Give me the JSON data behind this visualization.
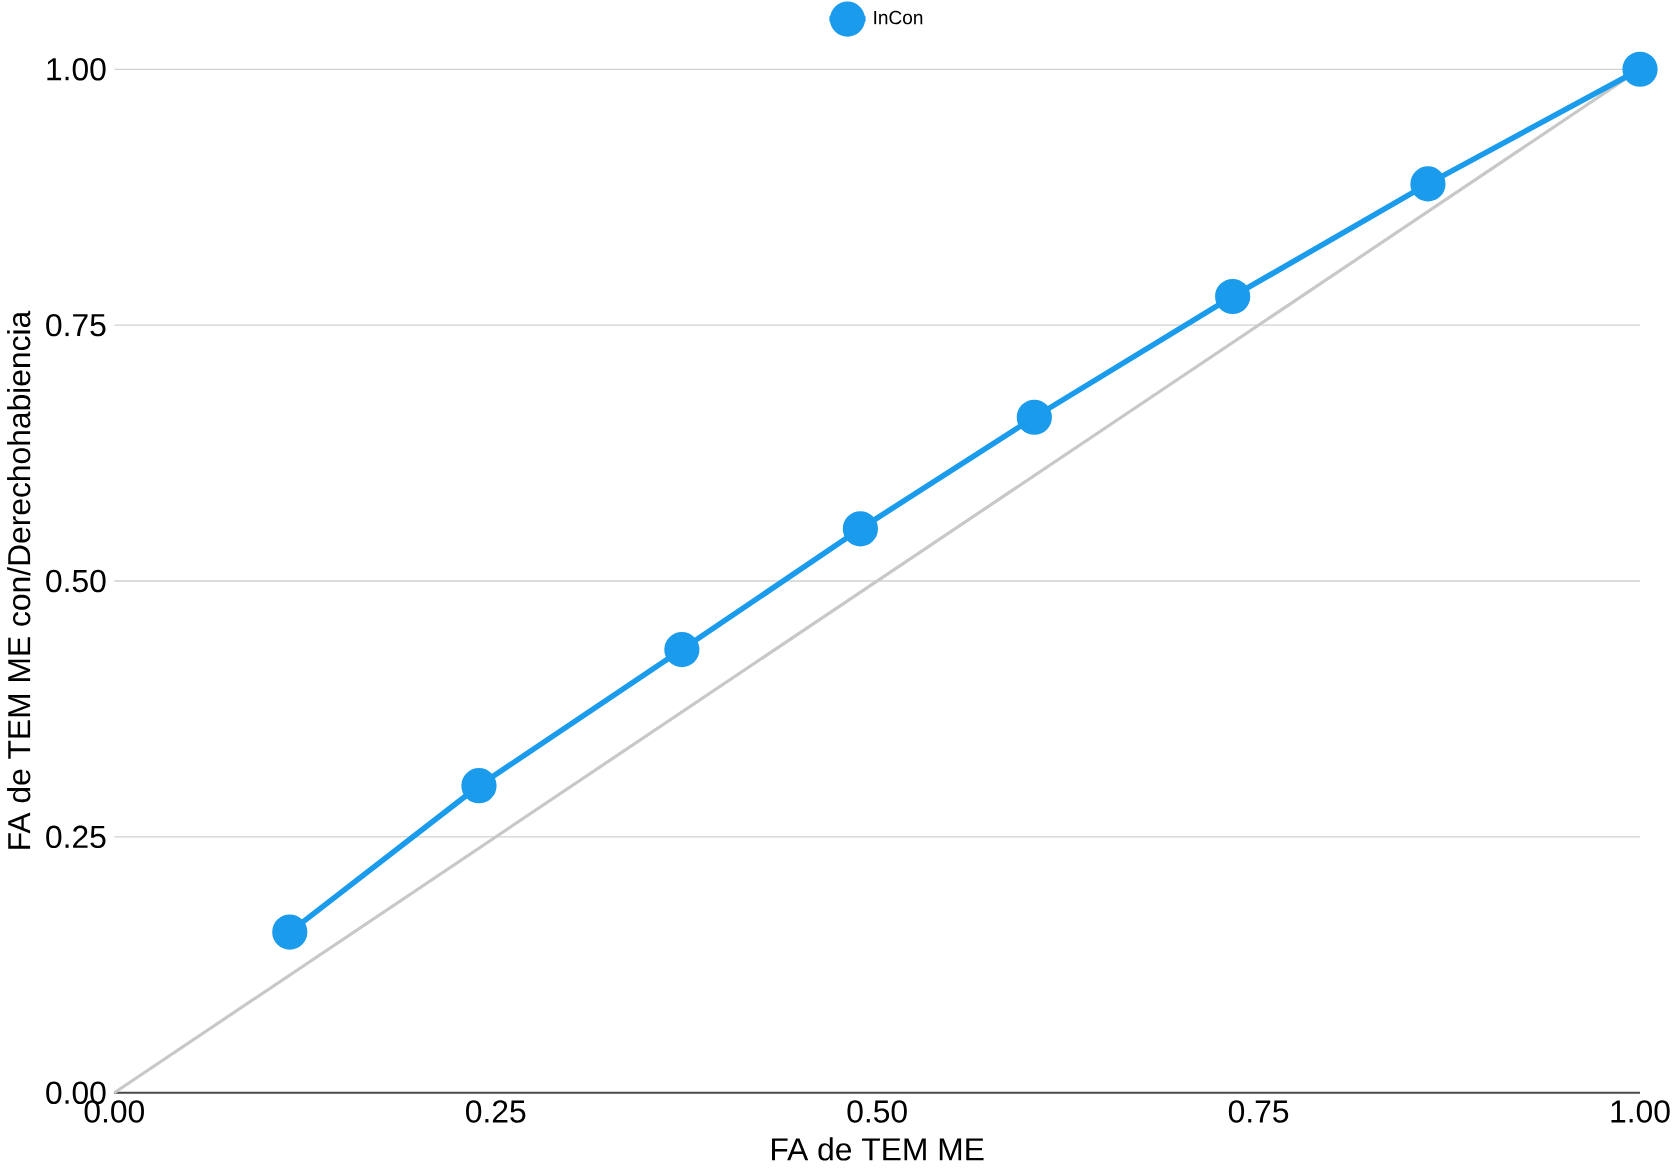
{
  "chart_data": {
    "type": "line",
    "xlabel": "FA de TEM ME",
    "ylabel": "FA de TEM ME con/Derechohabiencia",
    "series": [
      {
        "name": "InCon",
        "color": "#1a9bec",
        "x": [
          0.115,
          0.239,
          0.372,
          0.489,
          0.603,
          0.733,
          0.861,
          1.0
        ],
        "values": [
          0.157,
          0.3,
          0.433,
          0.551,
          0.66,
          0.778,
          0.888,
          1.0
        ],
        "marker": "circle"
      },
      {
        "color": "#c8c8c8",
        "x": [
          0.0,
          1.0
        ],
        "values": [
          0.0,
          1.0
        ],
        "marker": "none"
      }
    ],
    "xlim": [
      0,
      1
    ],
    "ylim": [
      0,
      1
    ],
    "xticks": [
      {
        "value": 0,
        "label": "0.00"
      },
      {
        "value": 0.25,
        "label": "0.25"
      },
      {
        "value": 0.5,
        "label": "0.50"
      },
      {
        "value": 0.75,
        "label": "0.75"
      },
      {
        "value": 1,
        "label": "1.00"
      }
    ],
    "yticks": [
      {
        "value": 0,
        "label": "0.00"
      },
      {
        "value": 0.25,
        "label": "0.25"
      },
      {
        "value": 0.5,
        "label": "0.50"
      },
      {
        "value": 0.75,
        "label": "0.75"
      },
      {
        "value": 1,
        "label": "1.00"
      }
    ],
    "grid": "y",
    "legend": "top",
    "line_style": "solid"
  }
}
